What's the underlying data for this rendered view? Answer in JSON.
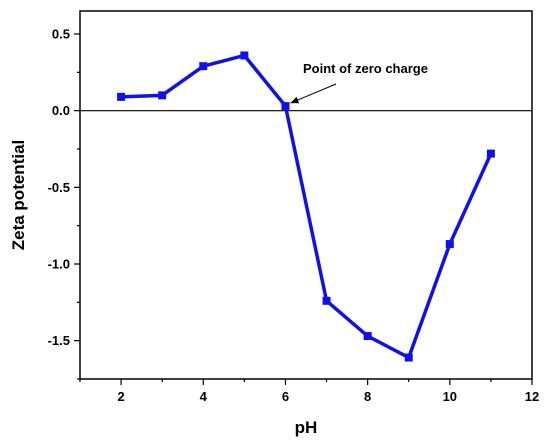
{
  "chart_data": {
    "type": "line",
    "xlabel": "pH",
    "ylabel": "Zeta potential",
    "xlim": [
      1,
      12
    ],
    "ylim": [
      -1.75,
      0.65
    ],
    "x_ticks": [
      2,
      4,
      6,
      8,
      10,
      12
    ],
    "x_tick_labels": [
      "2",
      "4",
      "6",
      "8",
      "10",
      "12"
    ],
    "y_ticks": [
      0.5,
      0.0,
      -0.5,
      -1.0,
      -1.5
    ],
    "y_tick_labels": [
      "0.5",
      "0.0",
      "-0.5",
      "-1.0",
      "-1.5"
    ],
    "grid": false,
    "reference_line_y": 0,
    "series": [
      {
        "color": "#1010e8",
        "marker": "square",
        "x": [
          2,
          3,
          4,
          5,
          6,
          7,
          8,
          9,
          10,
          11
        ],
        "y": [
          0.09,
          0.1,
          0.29,
          0.36,
          0.03,
          -1.24,
          -1.47,
          -1.61,
          -0.87,
          -0.28
        ]
      }
    ],
    "annotations": [
      {
        "text": "Point of zero charge",
        "x": 6,
        "y": 0.03
      }
    ]
  }
}
